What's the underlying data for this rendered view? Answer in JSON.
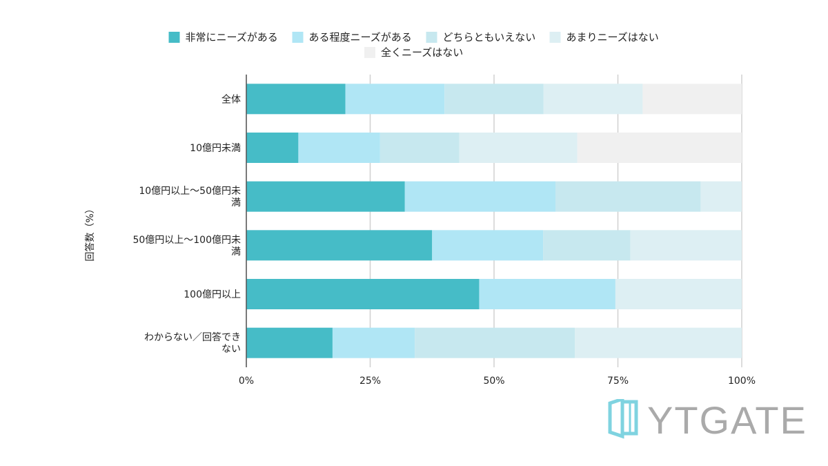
{
  "chart_data": {
    "type": "stacked-bar-horizontal-100",
    "ylabel": "回答数（%）",
    "xlabel": "",
    "xlim": [
      0,
      100
    ],
    "xticks": [
      "0%",
      "25%",
      "50%",
      "75%",
      "100%"
    ],
    "legend_position": "top-center",
    "series": [
      {
        "name": "非常にニーズがある",
        "color": "#46bcc7",
        "values": [
          20,
          10.5,
          32,
          37.5,
          47,
          17.4
        ]
      },
      {
        "name": "ある程度ニーズがある",
        "color": "#b0e6f5",
        "values": [
          20,
          16.5,
          30.4,
          22.4,
          27.5,
          16.6
        ]
      },
      {
        "name": "どちらともいえない",
        "color": "#c7e8ef",
        "values": [
          20,
          16,
          29.3,
          17.6,
          0,
          32.3
        ]
      },
      {
        "name": "あまりニーズはない",
        "color": "#ddeff3",
        "values": [
          20,
          23.8,
          8.3,
          22.5,
          25.5,
          33.7
        ]
      },
      {
        "name": "全くニーズはない",
        "color": "#f0f0f0",
        "values": [
          20,
          33.2,
          0,
          0,
          0,
          0
        ]
      }
    ],
    "categories": [
      [
        "全体"
      ],
      [
        "10億円未満"
      ],
      [
        "10億円以上〜50億円未",
        "満"
      ],
      [
        "50億円以上〜100億円未",
        "満"
      ],
      [
        "100億円以上"
      ],
      [
        "わからない／回答でき",
        "ない"
      ]
    ]
  },
  "logo": {
    "text": "YTGATE",
    "icon": "door-icon",
    "icon_color": "#7fd3e0",
    "text_color": "#aaaaaa"
  }
}
